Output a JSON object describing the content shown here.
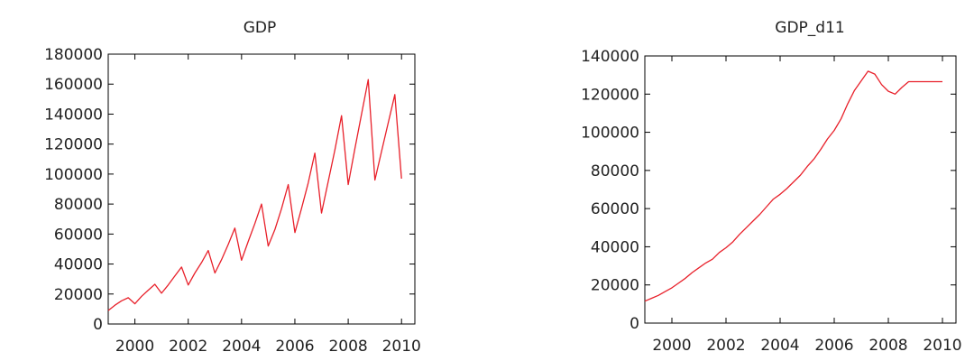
{
  "colors": {
    "line": "#e8202a",
    "axis": "#000000",
    "text": "#222222"
  },
  "chart_data": [
    {
      "type": "line",
      "title": "GDP",
      "xlabel": "",
      "ylabel": "",
      "xlim": [
        1999,
        2010.5
      ],
      "ylim": [
        0,
        180000
      ],
      "xticks": [
        2000,
        2002,
        2004,
        2006,
        2008,
        2010
      ],
      "xtick_labels": [
        "2000",
        "2002",
        "2004",
        "2006",
        "2008",
        "2010"
      ],
      "yticks": [
        0,
        20000,
        40000,
        60000,
        80000,
        100000,
        120000,
        140000,
        160000,
        180000
      ],
      "ytick_labels": [
        "0",
        "20000",
        "40000",
        "60000",
        "80000",
        "100000",
        "120000",
        "140000",
        "160000",
        "180000"
      ],
      "grid": false,
      "series": [
        {
          "x": [
            1999.0,
            1999.25,
            1999.5,
            1999.75,
            2000.0,
            2000.25,
            2000.5,
            2000.75,
            2001.0,
            2001.25,
            2001.5,
            2001.75,
            2002.0,
            2002.25,
            2002.5,
            2002.75,
            2003.0,
            2003.25,
            2003.5,
            2003.75,
            2004.0,
            2004.25,
            2004.5,
            2004.75,
            2005.0,
            2005.25,
            2005.5,
            2005.75,
            2006.0,
            2006.25,
            2006.5,
            2006.75,
            2007.0,
            2007.25,
            2007.5,
            2007.75,
            2008.0,
            2008.25,
            2008.5,
            2008.75,
            2009.0,
            2009.25,
            2009.5,
            2009.75,
            2010.0
          ],
          "values": [
            9000,
            12500,
            15500,
            17500,
            13500,
            18500,
            22500,
            26500,
            20500,
            26000,
            32000,
            38000,
            26000,
            34000,
            41000,
            49000,
            34000,
            43000,
            53000,
            64000,
            42500,
            55000,
            67000,
            80000,
            52000,
            63000,
            77000,
            93000,
            61000,
            77000,
            94000,
            114000,
            74000,
            95000,
            116000,
            139000,
            93000,
            117000,
            140000,
            163000,
            96000,
            115000,
            134000,
            153000,
            97000
          ]
        }
      ]
    },
    {
      "type": "line",
      "title": "GDP_d11",
      "xlabel": "",
      "ylabel": "",
      "xlim": [
        1999,
        2010.5
      ],
      "ylim": [
        0,
        140000
      ],
      "xticks": [
        2000,
        2002,
        2004,
        2006,
        2008,
        2010
      ],
      "xtick_labels": [
        "2000",
        "2002",
        "2004",
        "2006",
        "2008",
        "2010"
      ],
      "yticks": [
        0,
        20000,
        40000,
        60000,
        80000,
        100000,
        120000,
        140000
      ],
      "ytick_labels": [
        "0",
        "20000",
        "40000",
        "60000",
        "80000",
        "100000",
        "120000",
        "140000"
      ],
      "grid": false,
      "series": [
        {
          "x": [
            1999.0,
            1999.25,
            1999.5,
            1999.75,
            2000.0,
            2000.25,
            2000.5,
            2000.75,
            2001.0,
            2001.25,
            2001.5,
            2001.75,
            2002.0,
            2002.25,
            2002.5,
            2002.75,
            2003.0,
            2003.25,
            2003.5,
            2003.75,
            2004.0,
            2004.25,
            2004.5,
            2004.75,
            2005.0,
            2005.25,
            2005.5,
            2005.75,
            2006.0,
            2006.25,
            2006.5,
            2006.75,
            2007.0,
            2007.25,
            2007.5,
            2007.75,
            2008.0,
            2008.25,
            2008.5,
            2008.75,
            2009.0,
            2009.25,
            2009.5,
            2009.75,
            2010.0
          ],
          "values": [
            11500,
            13000,
            14500,
            16500,
            18500,
            21000,
            23500,
            26500,
            29000,
            31500,
            33500,
            37000,
            39500,
            42500,
            46500,
            50000,
            53500,
            57000,
            61000,
            65000,
            67500,
            70500,
            74000,
            77500,
            82000,
            86000,
            91000,
            96500,
            101000,
            107000,
            115000,
            122000,
            127000,
            132000,
            130500,
            125000,
            121500,
            120000,
            123500,
            126500,
            126500,
            126500,
            126500,
            126500,
            126500
          ]
        }
      ]
    }
  ]
}
